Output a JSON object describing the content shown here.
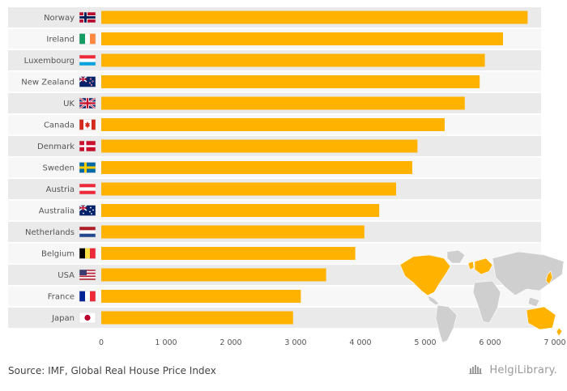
{
  "chart_data": {
    "type": "bar",
    "orientation": "horizontal",
    "categories": [
      "Norway",
      "Ireland",
      "Luxembourg",
      "New Zealand",
      "UK",
      "Canada",
      "Denmark",
      "Sweden",
      "Austria",
      "Australia",
      "Netherlands",
      "Belgium",
      "USA",
      "France",
      "Japan"
    ],
    "flags": [
      "norway-flag-icon",
      "ireland-flag-icon",
      "luxembourg-flag-icon",
      "new-zealand-flag-icon",
      "uk-flag-icon",
      "canada-flag-icon",
      "denmark-flag-icon",
      "sweden-flag-icon",
      "austria-flag-icon",
      "australia-flag-icon",
      "netherlands-flag-icon",
      "belgium-flag-icon",
      "usa-flag-icon",
      "france-flag-icon",
      "japan-flag-icon"
    ],
    "values": [
      6580,
      6200,
      5920,
      5840,
      5610,
      5300,
      4880,
      4800,
      4550,
      4290,
      4060,
      3920,
      3470,
      3080,
      2960
    ],
    "xlim": [
      0,
      7000
    ],
    "xticks": [
      0,
      1000,
      2000,
      3000,
      4000,
      5000,
      6000,
      7000
    ],
    "xtick_labels": [
      "0",
      "1 000",
      "2 000",
      "3 000",
      "4 000",
      "5 000",
      "6 000",
      "7 000"
    ],
    "bar_color": "#FFB300",
    "highlight_colors": [
      "#F7F7F7",
      "#EAEAEA"
    ],
    "title": "",
    "xlabel": "",
    "ylabel": ""
  },
  "footer": {
    "source": "Source: IMF, Global Real House Price Index",
    "logo_text": "HelgiLibrary."
  },
  "map_icon": "world-map-icon"
}
